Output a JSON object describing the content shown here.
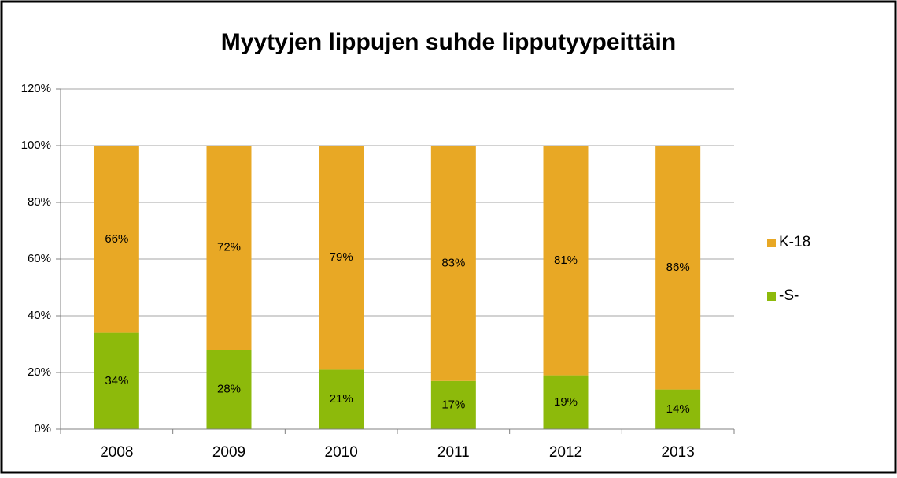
{
  "chart_data": {
    "type": "stacked_bar",
    "title": "Myytyjen lippujen suhde lipputyypeittäin",
    "categories": [
      "2008",
      "2009",
      "2010",
      "2011",
      "2012",
      "2013"
    ],
    "series": [
      {
        "name": "-S-",
        "color": "#8dba0b",
        "values": [
          34,
          28,
          21,
          17,
          19,
          14
        ],
        "value_labels": [
          "34%",
          "28%",
          "21%",
          "17%",
          "19%",
          "14%"
        ]
      },
      {
        "name": "K-18",
        "color": "#e8a825",
        "values": [
          66,
          72,
          79,
          83,
          81,
          86
        ],
        "value_labels": [
          "66%",
          "72%",
          "79%",
          "83%",
          "81%",
          "86%"
        ]
      }
    ],
    "ylim": [
      0,
      120
    ],
    "yticks": [
      {
        "value": 0,
        "label": "0%"
      },
      {
        "value": 20,
        "label": "20%"
      },
      {
        "value": 40,
        "label": "40%"
      },
      {
        "value": 60,
        "label": "60%"
      },
      {
        "value": 80,
        "label": "80%"
      },
      {
        "value": 100,
        "label": "100%"
      },
      {
        "value": 120,
        "label": "120%"
      }
    ],
    "grid": true,
    "legend": "right"
  }
}
